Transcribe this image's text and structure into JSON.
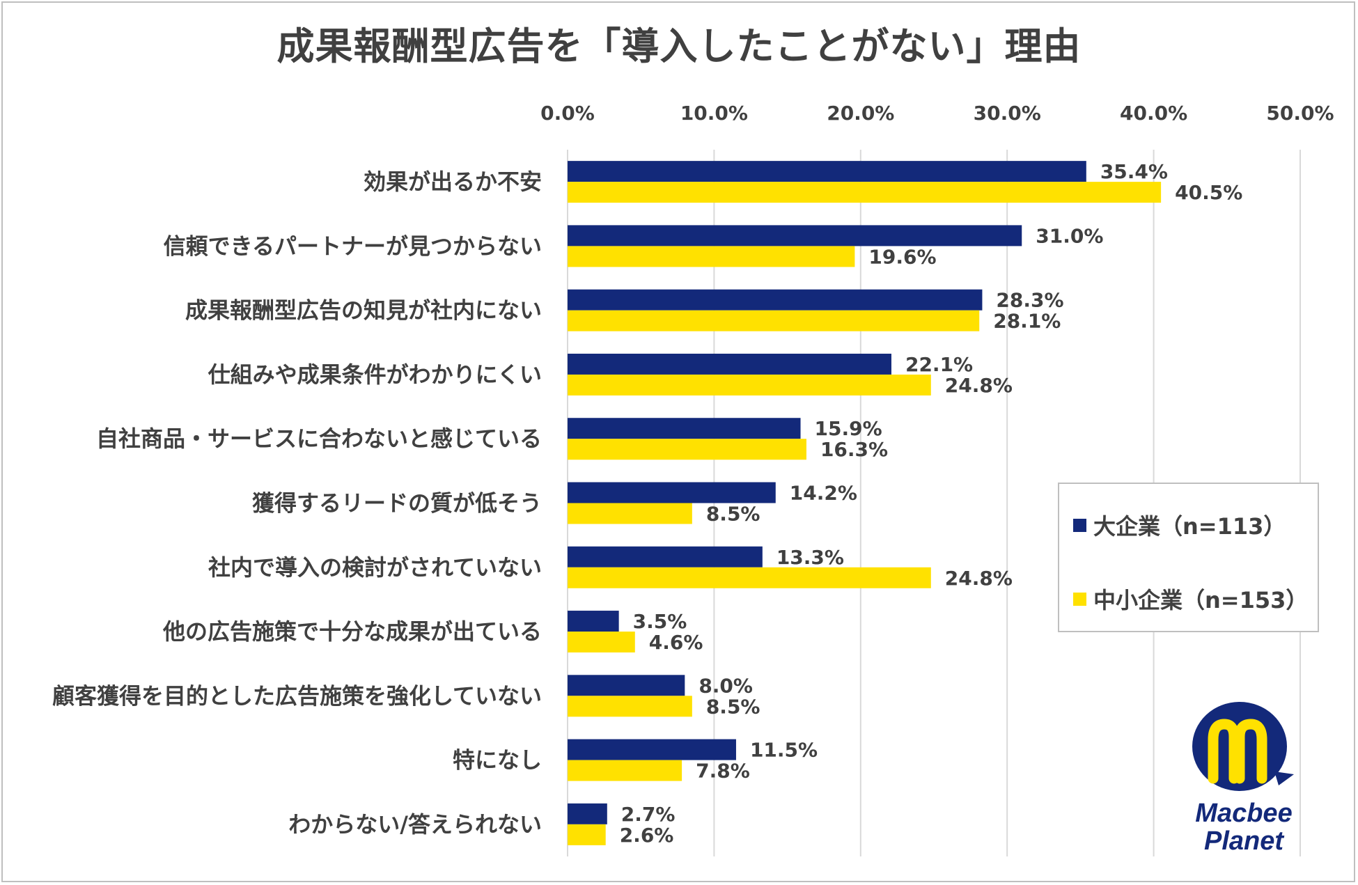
{
  "title": "成果報酬型広告を「導入したことがない」理由",
  "legend": {
    "large": "大企業（n=113）",
    "sme": "中小企業（n=153）"
  },
  "logo": {
    "text_line1": "Macbee",
    "text_line2": "Planet"
  },
  "colors": {
    "large": "#13297a",
    "sme": "#ffe100",
    "grid": "#d9d9d9",
    "text": "#404040",
    "logo_circle": "#13297a",
    "logo_mark": "#ffe100"
  },
  "chart_data": {
    "type": "bar",
    "orientation": "horizontal",
    "title": "成果報酬型広告を「導入したことがない」理由",
    "categories": [
      "効果が出るか不安",
      "信頼できるパートナーが見つからない",
      "成果報酬型広告の知見が社内にない",
      "仕組みや成果条件がわかりにくい",
      "自社商品・サービスに合わないと感じている",
      "獲得するリードの質が低そう",
      "社内で導入の検討がされていない",
      "他の広告施策で十分な成果が出ている",
      "顧客獲得を目的とした広告施策を強化していない",
      "特になし",
      "わからない/答えられない"
    ],
    "series": [
      {
        "name": "大企業（n=113）",
        "values": [
          35.4,
          31.0,
          28.3,
          22.1,
          15.9,
          14.2,
          13.3,
          3.5,
          8.0,
          11.5,
          2.7
        ]
      },
      {
        "name": "中小企業（n=153）",
        "values": [
          40.5,
          19.6,
          28.1,
          24.8,
          16.3,
          8.5,
          24.8,
          4.6,
          8.5,
          7.8,
          2.6
        ]
      }
    ],
    "xlim": [
      0,
      50
    ],
    "xticks": [
      "0.0%",
      "10.0%",
      "20.0%",
      "30.0%",
      "40.0%",
      "50.0%"
    ],
    "xaxis_position": "top",
    "value_format": "%",
    "grid": true,
    "legend_position": "right"
  }
}
